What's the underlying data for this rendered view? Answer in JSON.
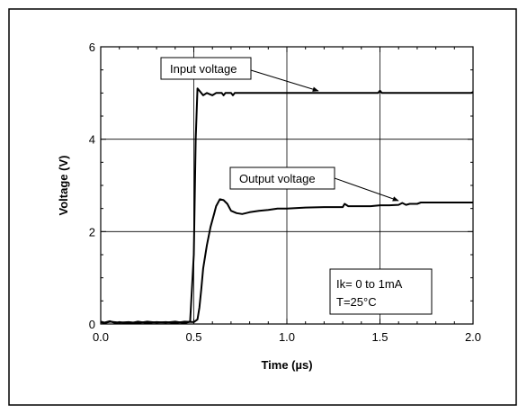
{
  "chart_data": {
    "type": "line",
    "title": "",
    "xlabel": "Time (µs)",
    "ylabel": "Voltage (V)",
    "xlim": [
      0,
      2.0
    ],
    "ylim": [
      0,
      6
    ],
    "x_ticks": [
      "0.0",
      "0.5",
      "1.0",
      "1.5",
      "2.0"
    ],
    "y_ticks": [
      "0",
      "2",
      "4",
      "6"
    ],
    "x_tick_values": [
      0,
      0.5,
      1.0,
      1.5,
      2.0
    ],
    "y_tick_values": [
      0,
      2,
      4,
      6
    ],
    "grid": true,
    "series": [
      {
        "name": "Input voltage",
        "x": [
          0.0,
          0.02,
          0.05,
          0.08,
          0.1,
          0.15,
          0.2,
          0.25,
          0.3,
          0.35,
          0.4,
          0.45,
          0.48,
          0.5,
          0.51,
          0.52,
          0.53,
          0.55,
          0.57,
          0.6,
          0.62,
          0.65,
          0.66,
          0.67,
          0.7,
          0.71,
          0.72,
          0.8,
          1.0,
          1.2,
          1.49,
          1.5,
          1.51,
          1.8,
          1.99,
          2.0
        ],
        "values": [
          0.05,
          0.03,
          0.06,
          0.02,
          0.04,
          0.01,
          0.05,
          0.02,
          0.04,
          0.03,
          0.05,
          0.02,
          0.05,
          1.5,
          4.0,
          5.1,
          5.05,
          4.95,
          5.0,
          4.95,
          5.0,
          5.0,
          4.95,
          5.0,
          5.0,
          4.95,
          5.0,
          5.0,
          5.0,
          5.0,
          5.0,
          5.05,
          5.0,
          5.0,
          5.0,
          5.02
        ]
      },
      {
        "name": "Output voltage",
        "x": [
          0.0,
          0.02,
          0.05,
          0.1,
          0.15,
          0.2,
          0.25,
          0.3,
          0.35,
          0.4,
          0.45,
          0.5,
          0.52,
          0.53,
          0.54,
          0.55,
          0.57,
          0.59,
          0.61,
          0.62,
          0.64,
          0.66,
          0.68,
          0.7,
          0.73,
          0.76,
          0.78,
          0.8,
          0.85,
          0.9,
          0.95,
          1.0,
          1.1,
          1.2,
          1.3,
          1.31,
          1.33,
          1.35,
          1.4,
          1.45,
          1.5,
          1.55,
          1.6,
          1.62,
          1.64,
          1.66,
          1.7,
          1.72,
          1.75,
          1.8,
          1.9,
          2.0
        ],
        "values": [
          0.04,
          0.02,
          0.05,
          0.03,
          0.04,
          0.02,
          0.05,
          0.03,
          0.04,
          0.02,
          0.05,
          0.04,
          0.1,
          0.35,
          0.75,
          1.2,
          1.7,
          2.1,
          2.4,
          2.55,
          2.7,
          2.68,
          2.6,
          2.45,
          2.4,
          2.38,
          2.4,
          2.42,
          2.45,
          2.47,
          2.5,
          2.5,
          2.52,
          2.53,
          2.53,
          2.6,
          2.55,
          2.55,
          2.55,
          2.55,
          2.57,
          2.57,
          2.58,
          2.62,
          2.58,
          2.6,
          2.6,
          2.63,
          2.63,
          2.63,
          2.63,
          2.63
        ]
      }
    ],
    "annotations": [
      {
        "text": "Input voltage",
        "series": "Input voltage",
        "points_to": [
          1.17,
          5.0
        ]
      },
      {
        "text": "Output voltage",
        "series": "Output voltage",
        "points_to": [
          1.58,
          2.65
        ]
      },
      {
        "text_lines": [
          "Ik= 0 to 1mA",
          "T=25°C"
        ]
      }
    ]
  }
}
